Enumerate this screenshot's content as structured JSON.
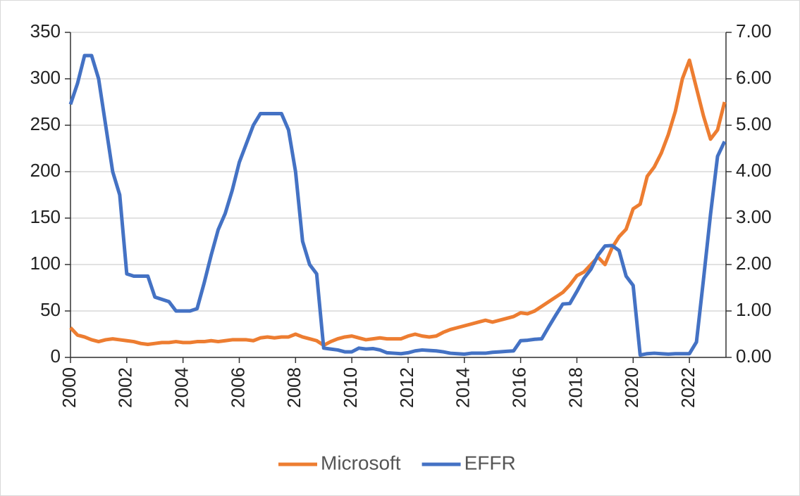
{
  "chart_data": {
    "type": "line",
    "x": [
      2000,
      2000.25,
      2000.5,
      2000.75,
      2001,
      2001.25,
      2001.5,
      2001.75,
      2002,
      2002.25,
      2002.5,
      2002.75,
      2003,
      2003.25,
      2003.5,
      2003.75,
      2004,
      2004.25,
      2004.5,
      2004.75,
      2005,
      2005.25,
      2005.5,
      2005.75,
      2006,
      2006.25,
      2006.5,
      2006.75,
      2007,
      2007.25,
      2007.5,
      2007.75,
      2008,
      2008.25,
      2008.5,
      2008.75,
      2009,
      2009.25,
      2009.5,
      2009.75,
      2010,
      2010.25,
      2010.5,
      2010.75,
      2011,
      2011.25,
      2011.5,
      2011.75,
      2012,
      2012.25,
      2012.5,
      2012.75,
      2013,
      2013.25,
      2013.5,
      2013.75,
      2014,
      2014.25,
      2014.5,
      2014.75,
      2015,
      2015.25,
      2015.5,
      2015.75,
      2016,
      2016.25,
      2016.5,
      2016.75,
      2017,
      2017.25,
      2017.5,
      2017.75,
      2018,
      2018.25,
      2018.5,
      2018.75,
      2019,
      2019.25,
      2019.5,
      2019.75,
      2020,
      2020.25,
      2020.5,
      2020.75,
      2021,
      2021.25,
      2021.5,
      2021.75,
      2022,
      2022.25,
      2022.5,
      2022.75,
      2023,
      2023.25
    ],
    "series": [
      {
        "name": "Microsoft",
        "color": "#ED7D31",
        "axis": "y",
        "values": [
          32,
          24,
          22,
          19,
          17,
          19,
          20,
          19,
          18,
          17,
          15,
          14,
          15,
          16,
          16,
          17,
          16,
          16,
          17,
          17,
          18,
          17,
          18,
          19,
          19,
          19,
          18,
          21,
          22,
          21,
          22,
          22,
          25,
          22,
          20,
          18,
          13,
          17,
          20,
          22,
          23,
          21,
          19,
          20,
          21,
          20,
          20,
          20,
          23,
          25,
          23,
          22,
          23,
          27,
          30,
          32,
          34,
          36,
          38,
          40,
          38,
          40,
          42,
          44,
          48,
          47,
          50,
          55,
          60,
          65,
          70,
          78,
          88,
          92,
          100,
          108,
          100,
          118,
          130,
          138,
          160,
          165,
          195,
          205,
          220,
          240,
          265,
          300,
          320,
          290,
          260,
          235,
          245,
          275
        ]
      },
      {
        "name": "EFFR",
        "color": "#4472C4",
        "axis": "y2",
        "values": [
          5.45,
          5.9,
          6.5,
          6.5,
          6.0,
          5.0,
          4.0,
          3.5,
          1.8,
          1.75,
          1.75,
          1.75,
          1.3,
          1.25,
          1.2,
          1.0,
          1.0,
          1.0,
          1.05,
          1.6,
          2.2,
          2.75,
          3.1,
          3.6,
          4.2,
          4.6,
          5.0,
          5.25,
          5.25,
          5.25,
          5.25,
          4.9,
          4.0,
          2.5,
          2.0,
          1.8,
          0.2,
          0.18,
          0.16,
          0.12,
          0.12,
          0.2,
          0.18,
          0.19,
          0.16,
          0.1,
          0.09,
          0.08,
          0.1,
          0.14,
          0.16,
          0.15,
          0.14,
          0.12,
          0.09,
          0.08,
          0.07,
          0.09,
          0.09,
          0.09,
          0.11,
          0.12,
          0.13,
          0.14,
          0.36,
          0.37,
          0.39,
          0.4,
          0.66,
          0.91,
          1.15,
          1.16,
          1.42,
          1.7,
          1.9,
          2.2,
          2.4,
          2.41,
          2.3,
          1.75,
          1.55,
          0.05,
          0.08,
          0.09,
          0.08,
          0.07,
          0.08,
          0.08,
          0.08,
          0.33,
          1.68,
          3.08,
          4.33,
          4.65
        ]
      }
    ],
    "xlim": [
      2000,
      2023.3
    ],
    "xticks": [
      2000,
      2002,
      2004,
      2006,
      2008,
      2010,
      2012,
      2014,
      2016,
      2018,
      2020,
      2022
    ],
    "ylim": [
      0,
      350
    ],
    "yticks": [
      0,
      50,
      100,
      150,
      200,
      250,
      300,
      350
    ],
    "y2lim": [
      0,
      7
    ],
    "y2ticks": [
      {
        "value": 0,
        "label": "0.00"
      },
      {
        "value": 1,
        "label": "1.00"
      },
      {
        "value": 2,
        "label": "2.00"
      },
      {
        "value": 3,
        "label": "3.00"
      },
      {
        "value": 4,
        "label": "4.00"
      },
      {
        "value": 5,
        "label": "5.00"
      },
      {
        "value": 6,
        "label": "6.00"
      },
      {
        "value": 7,
        "label": "7.00"
      }
    ],
    "grid": true,
    "legend": "bottom"
  }
}
